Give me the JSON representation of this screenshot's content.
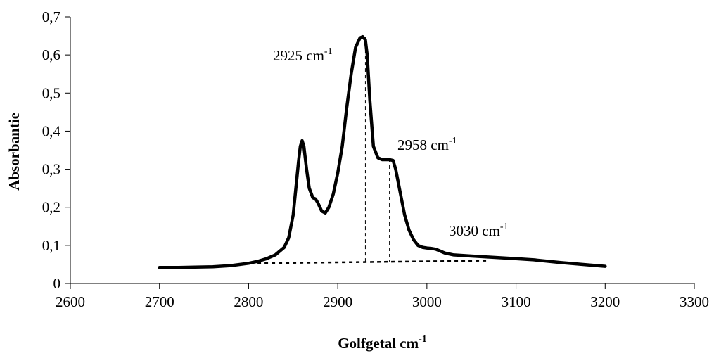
{
  "chart_data": {
    "type": "line",
    "xlabel": "Golfgetal cm",
    "xlabel_sup": "-1",
    "ylabel": "Absorbantie",
    "xlim": [
      2600,
      3300
    ],
    "ylim": [
      0,
      0.7
    ],
    "xticks": [
      2600,
      2700,
      2800,
      2900,
      3000,
      3100,
      3200,
      3300
    ],
    "yticks": [
      0,
      0.1,
      0.2,
      0.3,
      0.4,
      0.5,
      0.6,
      0.7
    ],
    "xtick_labels": [
      "2600",
      "2700",
      "2800",
      "2900",
      "3000",
      "3100",
      "3200",
      "3300"
    ],
    "ytick_labels": [
      "0",
      "0,1",
      "0,2",
      "0,3",
      "0,4",
      "0,5",
      "0,6",
      "0,7"
    ],
    "grid": false,
    "series": [
      {
        "x": [
          2700,
          2720,
          2740,
          2760,
          2780,
          2800,
          2810,
          2820,
          2830,
          2840,
          2845,
          2850,
          2853,
          2856,
          2858,
          2860,
          2862,
          2865,
          2868,
          2872,
          2875,
          2878,
          2882,
          2886,
          2890,
          2895,
          2900,
          2905,
          2910,
          2915,
          2920,
          2925,
          2928,
          2931,
          2933,
          2936,
          2940,
          2945,
          2950,
          2955,
          2958,
          2962,
          2965,
          2970,
          2975,
          2980,
          2985,
          2990,
          2995,
          3000,
          3005,
          3010,
          3015,
          3020,
          3030,
          3050,
          3080,
          3100,
          3120,
          3150,
          3180,
          3200
        ],
        "y": [
          0.042,
          0.042,
          0.043,
          0.044,
          0.047,
          0.053,
          0.058,
          0.065,
          0.075,
          0.095,
          0.12,
          0.18,
          0.25,
          0.32,
          0.36,
          0.375,
          0.36,
          0.3,
          0.25,
          0.225,
          0.222,
          0.21,
          0.19,
          0.185,
          0.2,
          0.235,
          0.29,
          0.36,
          0.46,
          0.55,
          0.62,
          0.645,
          0.648,
          0.64,
          0.6,
          0.48,
          0.36,
          0.33,
          0.325,
          0.325,
          0.325,
          0.323,
          0.3,
          0.24,
          0.18,
          0.14,
          0.115,
          0.1,
          0.095,
          0.093,
          0.092,
          0.09,
          0.085,
          0.08,
          0.075,
          0.072,
          0.068,
          0.065,
          0.062,
          0.055,
          0.049,
          0.045
        ]
      }
    ],
    "baseline": {
      "x": [
        2810,
        3070
      ],
      "y": [
        0.053,
        0.06
      ]
    },
    "markers": [
      {
        "x": 2931,
        "y": 0.648,
        "label": "2925 cm",
        "sup": "-1"
      },
      {
        "x": 2958,
        "y": 0.327,
        "label": "2958 cm",
        "sup": "-1"
      }
    ],
    "annotations": [
      {
        "x": 3015,
        "y": 0.13,
        "label": "3030 cm",
        "sup": "-1"
      }
    ]
  }
}
